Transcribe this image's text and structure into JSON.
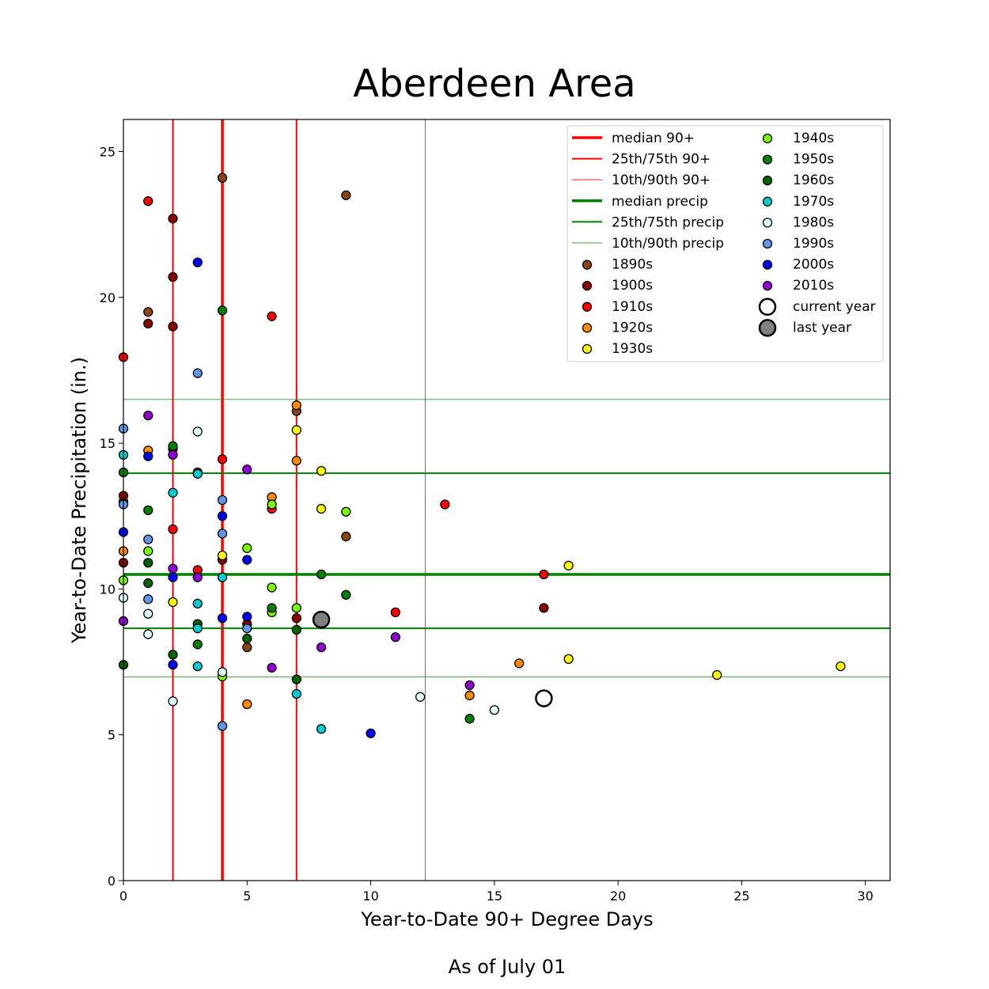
{
  "chart_data": {
    "type": "scatter",
    "title": "Aberdeen Area",
    "xlabel": "Year-to-Date 90+ Degree Days",
    "ylabel": "Year-to-Date Precipitation (in.)",
    "footnote": "As of July 01",
    "xlim": [
      0,
      31
    ],
    "ylim": [
      0,
      26.1
    ],
    "xticks": [
      0,
      5,
      10,
      15,
      20,
      25,
      30
    ],
    "yticks": [
      0,
      5,
      10,
      15,
      20,
      25
    ],
    "grid": false,
    "legend_position": "top-right",
    "reference_lines": {
      "median_90": 4,
      "p25_75_90": [
        2,
        7
      ],
      "p10_90_90": [
        0,
        12.2
      ],
      "median_precip": 10.5,
      "p25_75_precip": [
        8.65,
        13.97
      ],
      "p10_90_precip": [
        6.98,
        16.5
      ]
    },
    "line_legend": [
      {
        "label": "median 90+",
        "color": "#ff0000",
        "weight": "thick"
      },
      {
        "label": "25th/75th 90+",
        "color": "#ff0000",
        "weight": "medium"
      },
      {
        "label": "10th/90th 90+",
        "color": "#ff0000",
        "weight": "thin"
      },
      {
        "label": "median precip",
        "color": "#008000",
        "weight": "thick"
      },
      {
        "label": "25th/75th precip",
        "color": "#008000",
        "weight": "medium"
      },
      {
        "label": "10th/90th precip",
        "color": "#008000",
        "weight": "thin"
      }
    ],
    "series": [
      {
        "name": "1890s",
        "color": "#8b4513",
        "points": [
          [
            1,
            19.5
          ],
          [
            3,
            14.0
          ],
          [
            4,
            24.1
          ],
          [
            5,
            8.0
          ],
          [
            7,
            16.1
          ],
          [
            9,
            23.5
          ],
          [
            9,
            11.8
          ],
          [
            0,
            13.0
          ]
        ]
      },
      {
        "name": "1900s",
        "color": "#8b0000",
        "points": [
          [
            0,
            13.2
          ],
          [
            0,
            10.9
          ],
          [
            1,
            19.1
          ],
          [
            2,
            22.7
          ],
          [
            2,
            20.7
          ],
          [
            2,
            19.0
          ],
          [
            2,
            14.8
          ],
          [
            4,
            11.0
          ],
          [
            5,
            8.8
          ],
          [
            7,
            9.0
          ],
          [
            8,
            8.8
          ],
          [
            17,
            9.35
          ]
        ]
      },
      {
        "name": "1910s",
        "color": "#ff0000",
        "points": [
          [
            0,
            17.95
          ],
          [
            1,
            23.3
          ],
          [
            2,
            12.05
          ],
          [
            3,
            10.65
          ],
          [
            4,
            14.45
          ],
          [
            6,
            19.35
          ],
          [
            6,
            12.75
          ],
          [
            11,
            9.2
          ],
          [
            13,
            12.9
          ],
          [
            17,
            10.5
          ]
        ]
      },
      {
        "name": "1920s",
        "color": "#ff8c00",
        "points": [
          [
            0,
            11.3
          ],
          [
            1,
            14.75
          ],
          [
            5,
            6.05
          ],
          [
            6,
            13.15
          ],
          [
            7,
            16.3
          ],
          [
            7,
            14.4
          ],
          [
            14,
            6.35
          ],
          [
            16,
            7.45
          ]
        ]
      },
      {
        "name": "1930s",
        "color": "#ffff00",
        "points": [
          [
            2,
            9.55
          ],
          [
            4,
            11.15
          ],
          [
            7,
            15.45
          ],
          [
            8,
            14.05
          ],
          [
            8,
            12.75
          ],
          [
            18,
            10.8
          ],
          [
            18,
            7.6
          ],
          [
            24,
            7.05
          ],
          [
            29,
            7.35
          ]
        ]
      },
      {
        "name": "1940s",
        "color": "#7cfc00",
        "points": [
          [
            0,
            10.3
          ],
          [
            1,
            11.3
          ],
          [
            4,
            7.0
          ],
          [
            5,
            11.4
          ],
          [
            6,
            12.9
          ],
          [
            6,
            10.05
          ],
          [
            6,
            9.2
          ],
          [
            7,
            9.35
          ],
          [
            9,
            12.65
          ]
        ]
      },
      {
        "name": "1950s",
        "color": "#008000",
        "points": [
          [
            0,
            14.0
          ],
          [
            1,
            12.7
          ],
          [
            2,
            14.9
          ],
          [
            3,
            8.1
          ],
          [
            4,
            19.55
          ],
          [
            6,
            9.35
          ],
          [
            8,
            10.5
          ],
          [
            9,
            9.8
          ],
          [
            14,
            5.55
          ]
        ]
      },
      {
        "name": "1960s",
        "color": "#006400",
        "points": [
          [
            0,
            7.4
          ],
          [
            1,
            10.9
          ],
          [
            1,
            10.2
          ],
          [
            2,
            7.75
          ],
          [
            3,
            8.8
          ],
          [
            5,
            8.3
          ],
          [
            7,
            8.6
          ],
          [
            7,
            6.9
          ]
        ]
      },
      {
        "name": "1970s",
        "color": "#00ced1",
        "points": [
          [
            0,
            14.6
          ],
          [
            2,
            13.3
          ],
          [
            3,
            13.95
          ],
          [
            3,
            9.5
          ],
          [
            3,
            8.65
          ],
          [
            3,
            7.35
          ],
          [
            4,
            10.4
          ],
          [
            7,
            6.4
          ],
          [
            8,
            5.2
          ]
        ]
      },
      {
        "name": "1980s",
        "color": "#e0ffff",
        "points": [
          [
            0,
            9.7
          ],
          [
            1,
            9.15
          ],
          [
            1,
            8.45
          ],
          [
            2,
            6.15
          ],
          [
            3,
            15.4
          ],
          [
            4,
            7.15
          ],
          [
            12,
            6.3
          ],
          [
            15,
            5.85
          ]
        ]
      },
      {
        "name": "1990s",
        "color": "#6495ed",
        "points": [
          [
            0,
            15.5
          ],
          [
            0,
            12.9
          ],
          [
            1,
            11.7
          ],
          [
            1,
            9.65
          ],
          [
            3,
            17.4
          ],
          [
            4,
            13.05
          ],
          [
            4,
            11.9
          ],
          [
            4,
            5.3
          ],
          [
            5,
            8.65
          ]
        ]
      },
      {
        "name": "2000s",
        "color": "#0000ff",
        "points": [
          [
            0,
            11.95
          ],
          [
            1,
            14.55
          ],
          [
            2,
            10.4
          ],
          [
            2,
            7.4
          ],
          [
            3,
            21.2
          ],
          [
            4,
            12.5
          ],
          [
            4,
            9.0
          ],
          [
            5,
            11.0
          ],
          [
            5,
            9.05
          ],
          [
            10,
            5.05
          ]
        ]
      },
      {
        "name": "2010s",
        "color": "#9400d3",
        "points": [
          [
            0,
            8.9
          ],
          [
            1,
            15.95
          ],
          [
            2,
            14.6
          ],
          [
            2,
            10.7
          ],
          [
            3,
            10.4
          ],
          [
            5,
            14.1
          ],
          [
            6,
            7.3
          ],
          [
            8,
            8.0
          ],
          [
            11,
            8.35
          ],
          [
            14,
            6.7
          ]
        ]
      }
    ],
    "current_year": {
      "name": "current year",
      "x": 17,
      "y": 6.25,
      "color": "#ffffff"
    },
    "last_year": {
      "name": "last year",
      "x": 8,
      "y": 8.95,
      "color": "#808080"
    }
  }
}
